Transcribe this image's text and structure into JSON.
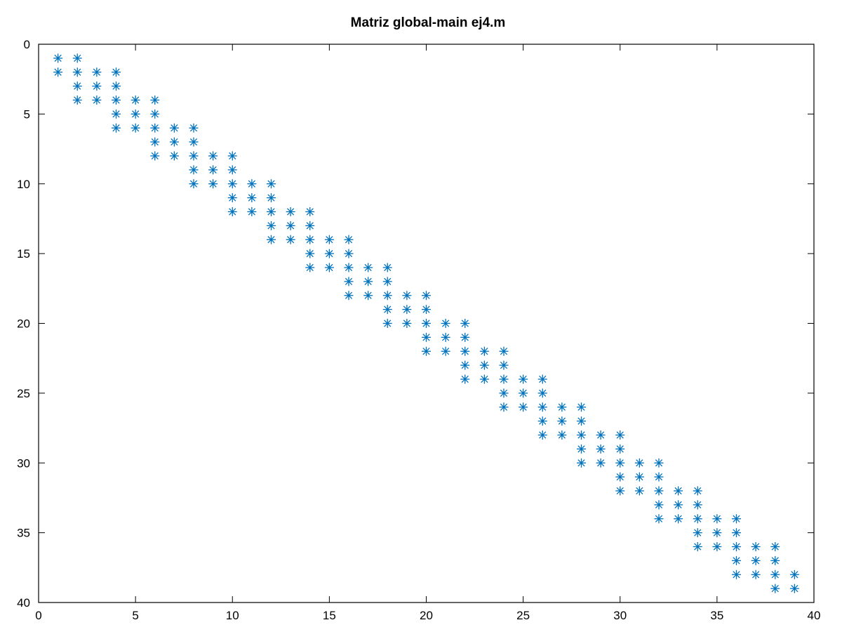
{
  "chart_data": {
    "type": "scatter",
    "title": "Matriz global-main ej4.m",
    "xlabel": "",
    "ylabel": "",
    "xlim": [
      0,
      40
    ],
    "ylim": [
      0,
      40
    ],
    "y_reversed": true,
    "x_ticks": [
      0,
      5,
      10,
      15,
      20,
      25,
      30,
      35,
      40
    ],
    "y_ticks": [
      0,
      5,
      10,
      15,
      20,
      25,
      30,
      35,
      40
    ],
    "grid": false,
    "marker": "asterisk",
    "marker_color": "#0072bd",
    "description": "sparsity pattern (spy plot): nonzero entries of a 39x39 banded matrix built from overlapping 3x3 blocks (blocks at rows/cols 1-2, 2-4, 4-6, ..., 36-38, 38-39)",
    "block_starts": [
      2,
      4,
      6,
      8,
      10,
      12,
      14,
      16,
      18,
      20,
      22,
      24,
      26,
      28,
      30,
      32,
      34,
      36
    ],
    "first_block": [
      1,
      2
    ],
    "last_block": [
      38,
      39
    ]
  }
}
